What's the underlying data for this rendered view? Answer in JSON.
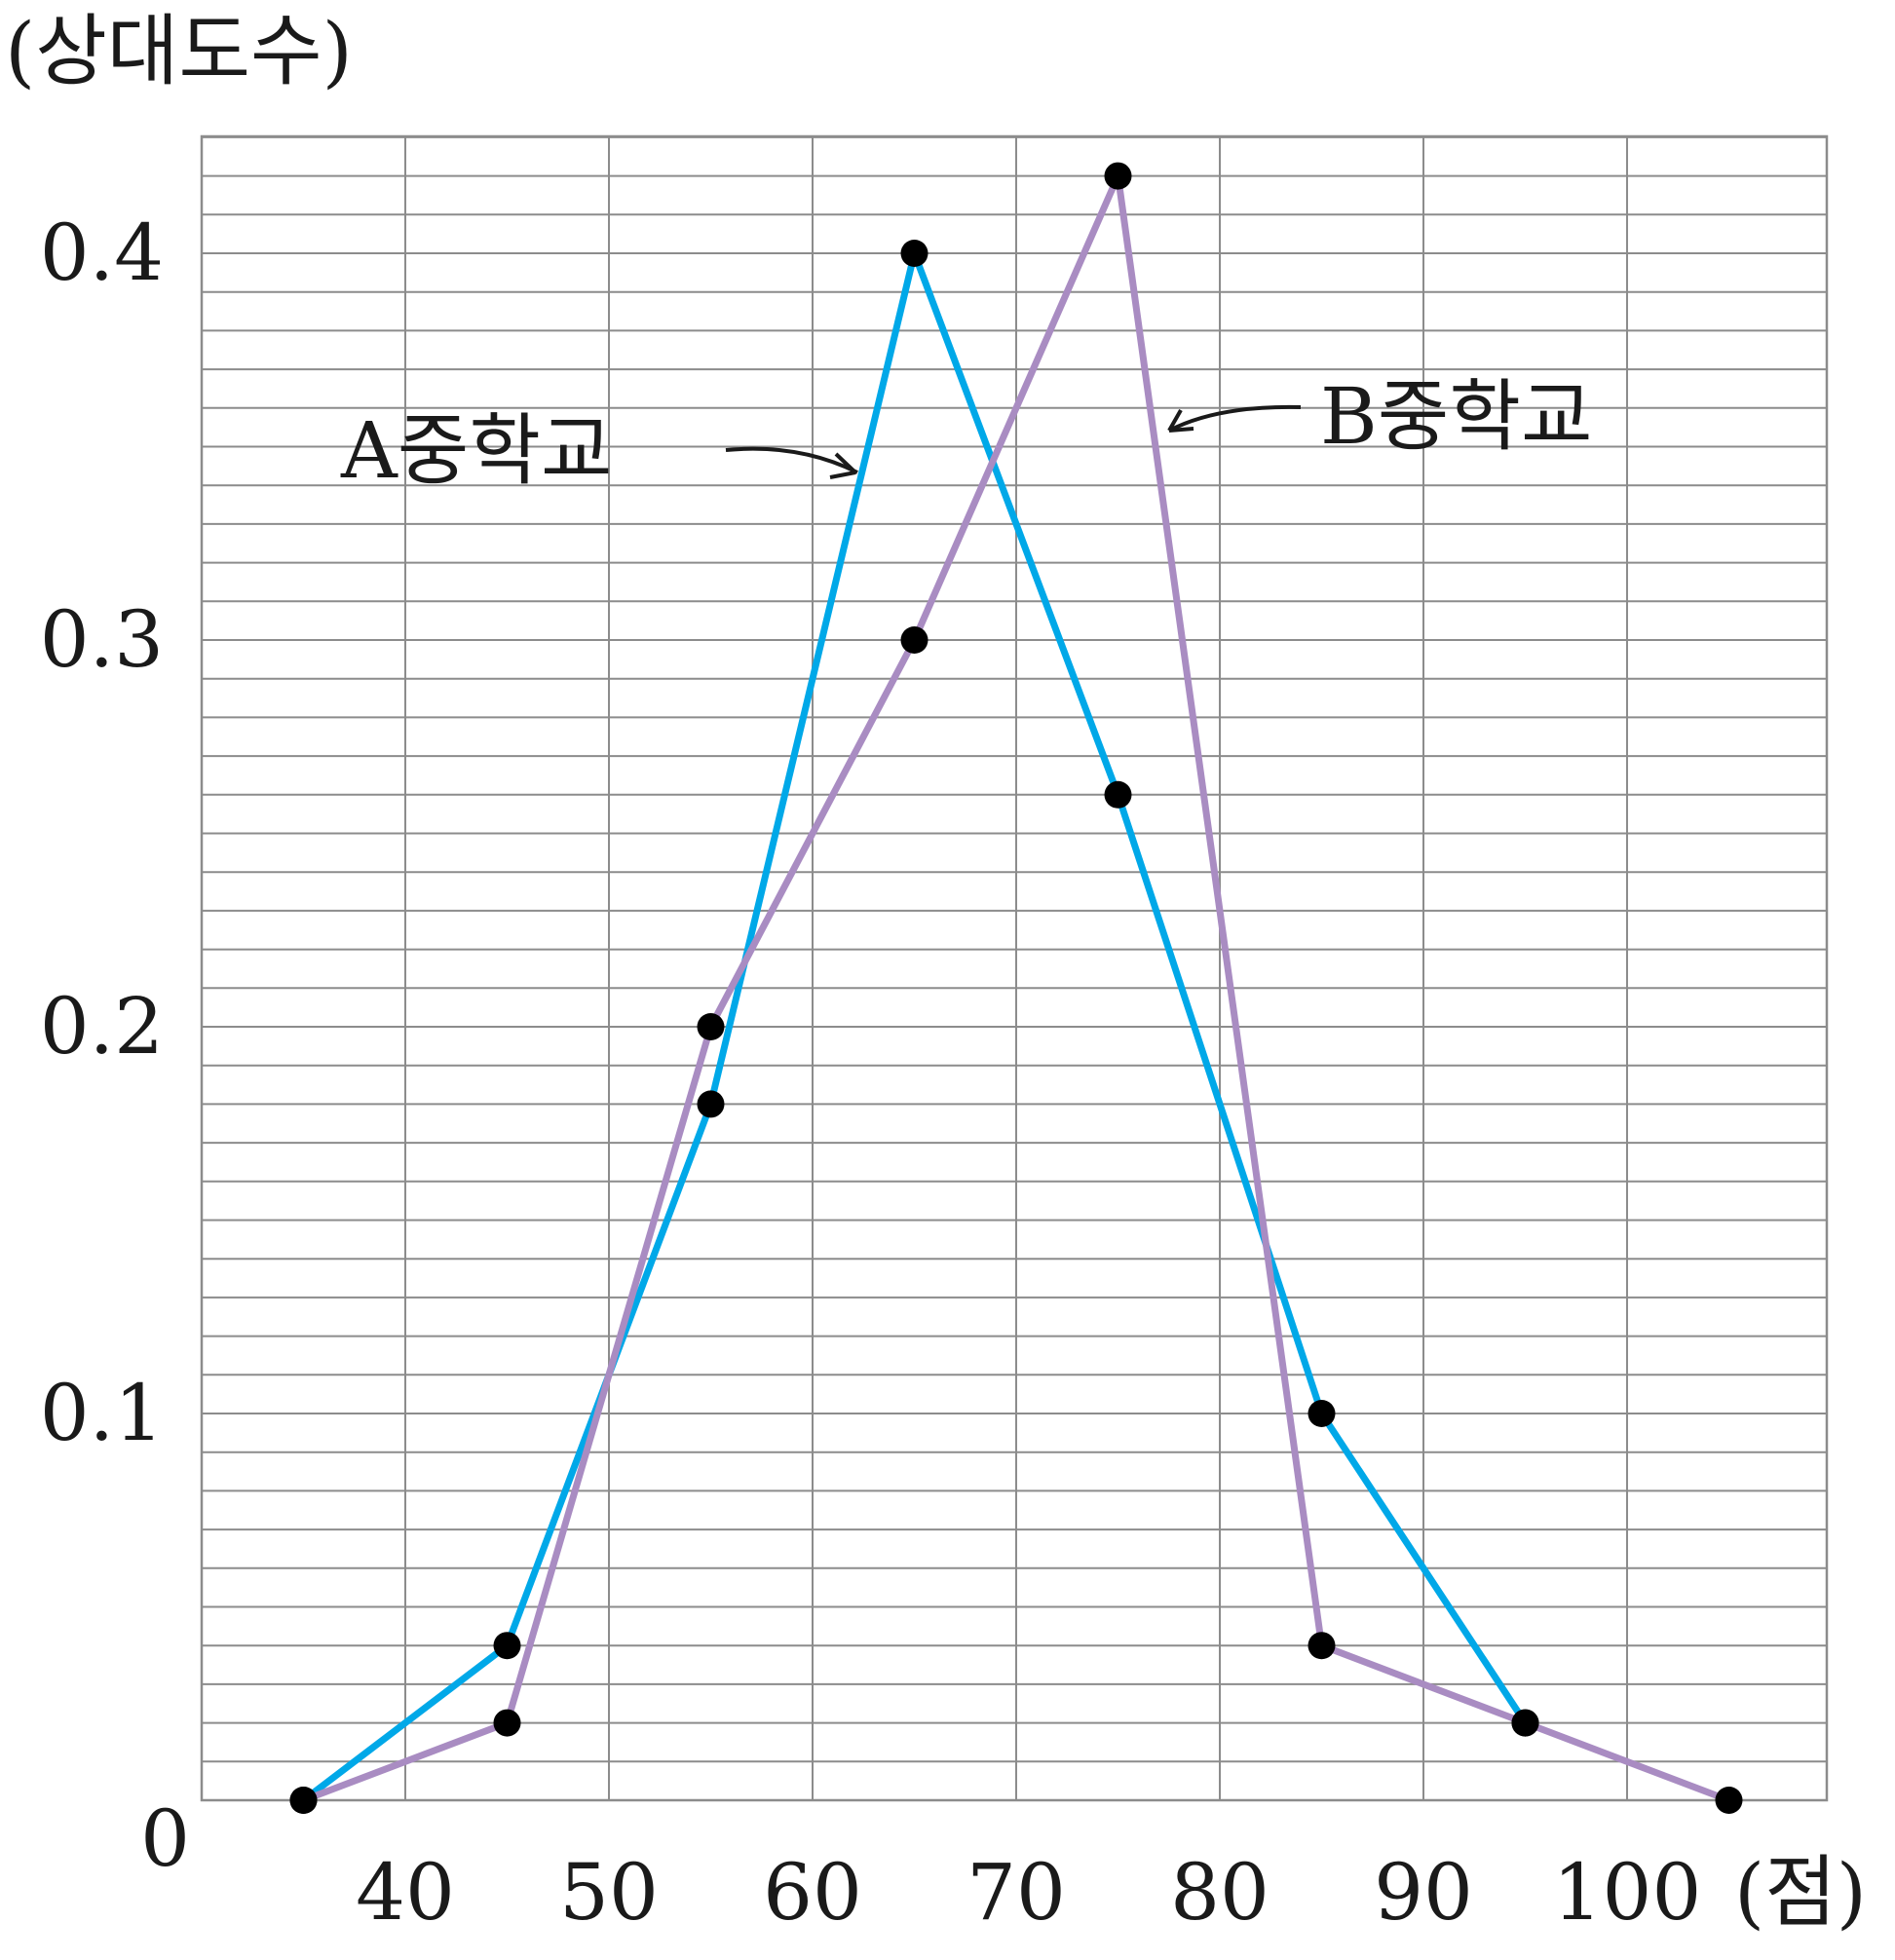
{
  "chart_data": {
    "type": "line",
    "title": "",
    "ylabel": "(상대도수)",
    "xlabel": "(점)",
    "origin_label": "0",
    "x_ticks": [
      "40",
      "50",
      "60",
      "70",
      "80",
      "90",
      "100"
    ],
    "y_ticks": [
      "0.1",
      "0.2",
      "0.3",
      "0.4"
    ],
    "xlim": [
      30,
      100
    ],
    "ylim": [
      0,
      0.43
    ],
    "grid": true,
    "x_grid_step": 10,
    "y_grid_step": 0.01,
    "series": [
      {
        "name": "A중학교",
        "color": "#00a8e8",
        "points": [
          [
            35,
            0
          ],
          [
            45,
            0.04
          ],
          [
            55,
            0.18
          ],
          [
            65,
            0.4
          ],
          [
            75,
            0.26
          ],
          [
            85,
            0.1
          ],
          [
            95,
            0.02
          ]
        ]
      },
      {
        "name": "B중학교",
        "color": "#a98cc2",
        "points": [
          [
            35,
            0
          ],
          [
            45,
            0.02
          ],
          [
            55,
            0.2
          ],
          [
            65,
            0.3
          ],
          [
            75,
            0.42
          ],
          [
            85,
            0.04
          ],
          [
            95,
            0.02
          ],
          [
            105,
            0
          ]
        ]
      }
    ]
  }
}
